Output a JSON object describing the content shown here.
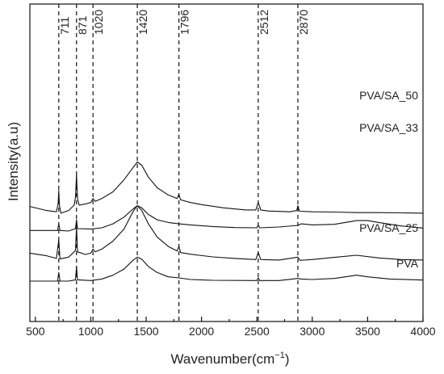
{
  "chart_data": {
    "type": "line",
    "title": "",
    "xlabel": "Wavenumber(cm",
    "xlabel_sup": "−1",
    "xlabel_close": ")",
    "ylabel": "Intensity(a.u)",
    "xlim": [
      450,
      4000
    ],
    "xticks": [
      500,
      1000,
      1500,
      2000,
      2500,
      3000,
      3500,
      4000
    ],
    "y_tick_labels": false,
    "reference_lines": [
      {
        "x": 711,
        "label": "711"
      },
      {
        "x": 871,
        "label": "871"
      },
      {
        "x": 1020,
        "label": "1020"
      },
      {
        "x": 1420,
        "label": "1420"
      },
      {
        "x": 1796,
        "label": "1796"
      },
      {
        "x": 2512,
        "label": "2512"
      },
      {
        "x": 2870,
        "label": "2870"
      }
    ],
    "series": [
      {
        "name": "PVA/SA_50",
        "offset": 2.55,
        "points": [
          [
            450,
            0.25
          ],
          [
            600,
            0.1
          ],
          [
            690,
            0.05
          ],
          [
            705,
            0.35
          ],
          [
            711,
            0.85
          ],
          [
            717,
            0.3
          ],
          [
            730,
            0.0
          ],
          [
            800,
            0.1
          ],
          [
            850,
            0.3
          ],
          [
            862,
            0.6
          ],
          [
            871,
            1.45
          ],
          [
            880,
            0.55
          ],
          [
            895,
            0.3
          ],
          [
            950,
            0.34
          ],
          [
            1000,
            0.4
          ],
          [
            1020,
            0.55
          ],
          [
            1040,
            0.44
          ],
          [
            1100,
            0.55
          ],
          [
            1200,
            0.8
          ],
          [
            1300,
            1.25
          ],
          [
            1380,
            1.7
          ],
          [
            1420,
            1.92
          ],
          [
            1460,
            1.8
          ],
          [
            1520,
            1.35
          ],
          [
            1600,
            0.95
          ],
          [
            1700,
            0.68
          ],
          [
            1780,
            0.55
          ],
          [
            1796,
            0.7
          ],
          [
            1812,
            0.5
          ],
          [
            1900,
            0.4
          ],
          [
            2000,
            0.32
          ],
          [
            2200,
            0.2
          ],
          [
            2400,
            0.12
          ],
          [
            2490,
            0.12
          ],
          [
            2512,
            0.4
          ],
          [
            2535,
            0.12
          ],
          [
            2600,
            0.08
          ],
          [
            2800,
            0.05
          ],
          [
            2860,
            0.1
          ],
          [
            2870,
            0.28
          ],
          [
            2885,
            0.07
          ],
          [
            3000,
            0.05
          ],
          [
            3200,
            0.04
          ],
          [
            3400,
            0.02
          ],
          [
            3600,
            0.02
          ],
          [
            3800,
            0.01
          ],
          [
            4000,
            0.0
          ]
        ]
      },
      {
        "name": "PVA/SA_33",
        "offset": 1.85,
        "points": [
          [
            450,
            0.05
          ],
          [
            600,
            0.05
          ],
          [
            700,
            0.05
          ],
          [
            711,
            0.3
          ],
          [
            722,
            0.05
          ],
          [
            800,
            0.03
          ],
          [
            862,
            0.12
          ],
          [
            871,
            0.45
          ],
          [
            880,
            0.12
          ],
          [
            1000,
            0.1
          ],
          [
            1100,
            0.15
          ],
          [
            1200,
            0.3
          ],
          [
            1300,
            0.55
          ],
          [
            1380,
            0.85
          ],
          [
            1420,
            0.98
          ],
          [
            1460,
            0.9
          ],
          [
            1520,
            0.65
          ],
          [
            1600,
            0.45
          ],
          [
            1700,
            0.35
          ],
          [
            1796,
            0.3
          ],
          [
            1900,
            0.26
          ],
          [
            2100,
            0.2
          ],
          [
            2300,
            0.16
          ],
          [
            2500,
            0.15
          ],
          [
            2512,
            0.25
          ],
          [
            2525,
            0.15
          ],
          [
            2700,
            0.18
          ],
          [
            2870,
            0.24
          ],
          [
            2900,
            0.3
          ],
          [
            3000,
            0.26
          ],
          [
            3200,
            0.28
          ],
          [
            3400,
            0.42
          ],
          [
            3500,
            0.42
          ],
          [
            3600,
            0.35
          ],
          [
            3800,
            0.22
          ],
          [
            4000,
            0.14
          ]
        ]
      },
      {
        "name": "PVA/SA_25",
        "offset": 0.75,
        "points": [
          [
            450,
            0.3
          ],
          [
            600,
            0.2
          ],
          [
            690,
            0.1
          ],
          [
            711,
            0.8
          ],
          [
            722,
            0.08
          ],
          [
            800,
            0.15
          ],
          [
            862,
            0.4
          ],
          [
            871,
            1.3
          ],
          [
            880,
            0.35
          ],
          [
            950,
            0.25
          ],
          [
            1000,
            0.3
          ],
          [
            1020,
            0.45
          ],
          [
            1040,
            0.35
          ],
          [
            1100,
            0.45
          ],
          [
            1200,
            0.75
          ],
          [
            1300,
            1.2
          ],
          [
            1380,
            1.85
          ],
          [
            1420,
            2.08
          ],
          [
            1460,
            1.9
          ],
          [
            1520,
            1.4
          ],
          [
            1600,
            0.9
          ],
          [
            1700,
            0.55
          ],
          [
            1780,
            0.38
          ],
          [
            1796,
            0.55
          ],
          [
            1812,
            0.32
          ],
          [
            1900,
            0.26
          ],
          [
            2100,
            0.16
          ],
          [
            2300,
            0.1
          ],
          [
            2490,
            0.06
          ],
          [
            2512,
            0.32
          ],
          [
            2535,
            0.06
          ],
          [
            2700,
            0.04
          ],
          [
            2870,
            0.15
          ],
          [
            2890,
            0.03
          ],
          [
            3000,
            0.06
          ],
          [
            3200,
            0.14
          ],
          [
            3400,
            0.22
          ],
          [
            3600,
            0.12
          ],
          [
            3800,
            0.06
          ],
          [
            4000,
            0.04
          ]
        ]
      },
      {
        "name": "PVA",
        "offset": 0.0,
        "points": [
          [
            450,
            0.0
          ],
          [
            600,
            0.0
          ],
          [
            700,
            0.0
          ],
          [
            711,
            0.32
          ],
          [
            722,
            0.0
          ],
          [
            800,
            0.0
          ],
          [
            862,
            0.05
          ],
          [
            871,
            0.55
          ],
          [
            880,
            0.05
          ],
          [
            1000,
            0.02
          ],
          [
            1100,
            0.08
          ],
          [
            1200,
            0.22
          ],
          [
            1300,
            0.45
          ],
          [
            1380,
            0.78
          ],
          [
            1420,
            0.9
          ],
          [
            1460,
            0.82
          ],
          [
            1520,
            0.55
          ],
          [
            1600,
            0.32
          ],
          [
            1700,
            0.16
          ],
          [
            1796,
            0.12
          ],
          [
            1900,
            0.06
          ],
          [
            2100,
            0.03
          ],
          [
            2500,
            0.02
          ],
          [
            2512,
            0.12
          ],
          [
            2525,
            0.02
          ],
          [
            2700,
            0.02
          ],
          [
            2870,
            0.1
          ],
          [
            2900,
            0.08
          ],
          [
            3000,
            0.06
          ],
          [
            3200,
            0.1
          ],
          [
            3400,
            0.22
          ],
          [
            3500,
            0.16
          ],
          [
            3700,
            0.08
          ],
          [
            4000,
            0.04
          ]
        ]
      }
    ]
  }
}
